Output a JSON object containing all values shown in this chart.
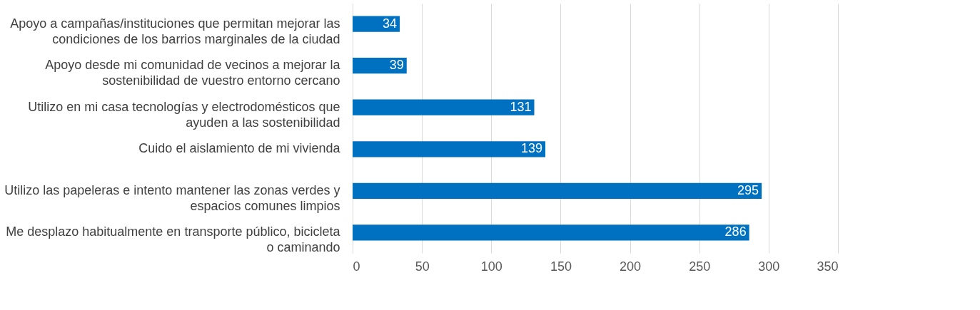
{
  "chart_data": {
    "type": "bar",
    "orientation": "horizontal",
    "categories": [
      "Apoyo a campañas/instituciones que permitan mejorar las condiciones de los barrios marginales de la ciudad",
      "Apoyo desde mi comunidad de vecinos a mejorar la sostenibilidad de vuestro entorno cercano",
      "Utilizo en mi casa tecnologías y electrodomésticos que ayuden a las sostenibilidad",
      "Cuido el aislamiento de mi vivienda",
      "Utilizo las papeleras e intento mantener las zonas verdes y espacios comunes limpios",
      "Me desplazo habitualmente en transporte público, bicicleta o caminando"
    ],
    "values": [
      34,
      39,
      131,
      139,
      295,
      286
    ],
    "color": "#0070c0",
    "xlim": [
      0,
      350
    ],
    "xticks": [
      0,
      50,
      100,
      150,
      200,
      250,
      300,
      350
    ],
    "grid": "x",
    "data_labels": true
  }
}
